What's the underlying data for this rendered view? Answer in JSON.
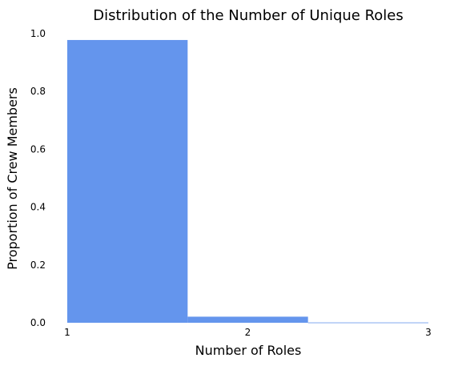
{
  "chart_data": {
    "type": "bar",
    "title": "Distribution of the Number of Unique Roles",
    "xlabel": "Number of Roles",
    "ylabel": "Proportion of Crew Members",
    "bins": [
      {
        "start": 1,
        "end": 1.6667,
        "value": 0.978
      },
      {
        "start": 1.6667,
        "end": 2.3333,
        "value": 0.021
      },
      {
        "start": 2.3333,
        "end": 3,
        "value": 0.001
      }
    ],
    "xlim": [
      1,
      3
    ],
    "ylim": [
      0,
      1.0
    ],
    "x_ticks": [
      "1",
      "2",
      "3"
    ],
    "x_tick_values": [
      1,
      2,
      3
    ],
    "y_ticks": [
      "0.0",
      "0.2",
      "0.4",
      "0.6",
      "0.8",
      "1.0"
    ],
    "y_tick_values": [
      0,
      0.2,
      0.4,
      0.6,
      0.8,
      1.0
    ],
    "bar_color": "#6495ED",
    "grid": false,
    "legend": "none"
  }
}
